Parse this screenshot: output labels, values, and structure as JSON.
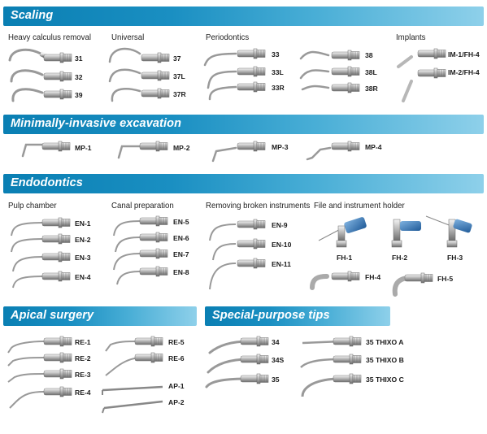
{
  "sections": {
    "scaling": "Scaling",
    "minimally_invasive": "Minimally-invasive excavation",
    "endodontics": "Endodontics",
    "apical_surgery": "Apical surgery",
    "special_purpose": "Special-purpose tips"
  },
  "groups": {
    "heavy_calculus": "Heavy calculus removal",
    "universal": "Universal",
    "periodontics": "Periodontics",
    "implants": "Implants",
    "pulp_chamber": "Pulp chamber",
    "canal_preparation": "Canal preparation",
    "removing_broken": "Removing broken instruments",
    "file_holder": "File and instrument holder"
  },
  "tips": {
    "t31": "31",
    "t32": "32",
    "t39": "39",
    "t37": "37",
    "t37L": "37L",
    "t37R": "37R",
    "t33": "33",
    "t33L": "33L",
    "t33R": "33R",
    "t38": "38",
    "t38L": "38L",
    "t38R": "38R",
    "im1": "IM-1/FH-4",
    "im2": "IM-2/FH-4",
    "mp1": "MP-1",
    "mp2": "MP-2",
    "mp3": "MP-3",
    "mp4": "MP-4",
    "en1": "EN-1",
    "en2": "EN-2",
    "en3": "EN-3",
    "en4": "EN-4",
    "en5": "EN-5",
    "en6": "EN-6",
    "en7": "EN-7",
    "en8": "EN-8",
    "en9": "EN-9",
    "en10": "EN-10",
    "en11": "EN-11",
    "fh1": "FH-1",
    "fh2": "FH-2",
    "fh3": "FH-3",
    "fh4": "FH-4",
    "fh5": "FH-5",
    "re1": "RE-1",
    "re2": "RE-2",
    "re3": "RE-3",
    "re4": "RE-4",
    "re5": "RE-5",
    "re6": "RE-6",
    "ap1": "AP-1",
    "ap2": "AP-2",
    "s34": "34",
    "s34S": "34S",
    "s35": "35",
    "thixoA": "35 THIXO A",
    "thixoB": "35 THIXO B",
    "thixoC": "35 THIXO C"
  },
  "colors": {
    "bar_dark": "#0a7fb3",
    "bar_light": "#8ed0ea",
    "holder_blue": "#2f6fae"
  }
}
